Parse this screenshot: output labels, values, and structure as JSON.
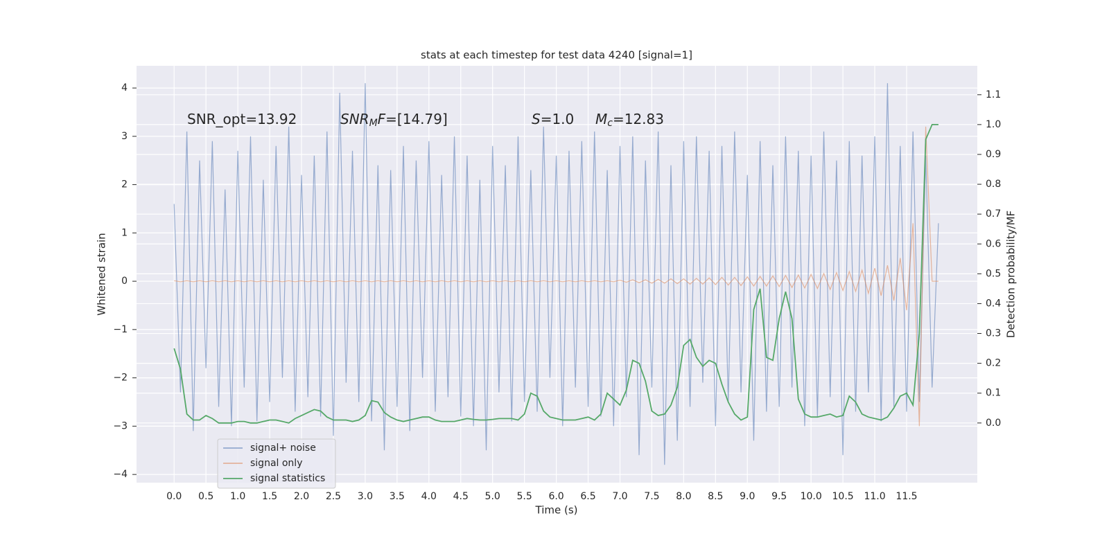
{
  "chart_data": {
    "type": "line",
    "title": "stats at each timestep for test data 4240 [signal=1]",
    "xlabel": "Time (s)",
    "ylabel": "Whitened strain",
    "y2label": "Detection probability/MF",
    "xlim": [
      -0.59,
      12.61
    ],
    "ylim": [
      -4.17,
      4.46
    ],
    "y2lim": [
      -0.2,
      1.197
    ],
    "xticks": [
      {
        "value": 0,
        "label": "0.0"
      },
      0.5,
      {
        "value": 1,
        "label": "1.0"
      },
      1.5,
      {
        "value": 2,
        "label": "2.0"
      },
      2.5,
      {
        "value": 3,
        "label": "3.0"
      },
      3.5,
      {
        "value": 4,
        "label": "4.0"
      },
      4.5,
      {
        "value": 5,
        "label": "5.0"
      },
      5.5,
      {
        "value": 6,
        "label": "6.0"
      },
      6.5,
      {
        "value": 7,
        "label": "7.0"
      },
      7.5,
      {
        "value": 8,
        "label": "8.0"
      },
      8.5,
      {
        "value": 9,
        "label": "9.0"
      },
      9.5,
      {
        "value": 10,
        "label": "10.0"
      },
      10.5,
      {
        "value": 11,
        "label": "11.0"
      },
      11.5
    ],
    "yticks": [
      {
        "value": -4,
        "label": "−4"
      },
      {
        "value": -3,
        "label": "−3"
      },
      {
        "value": -2,
        "label": "−2"
      },
      {
        "value": -1,
        "label": "−1"
      },
      0,
      1,
      2,
      3,
      4
    ],
    "y2ticks": [
      {
        "value": 0,
        "label": "0.0"
      },
      0.1,
      0.2,
      0.3,
      0.4,
      0.5,
      0.6,
      0.7,
      0.8,
      0.9,
      {
        "value": 1,
        "label": "1.0"
      },
      1.1
    ],
    "grid": true,
    "legend": "lower left",
    "annotations": [
      {
        "text": "SNR_opt=13.92"
      },
      {
        "math": "SNR",
        "sub": "M",
        "math_after": "F",
        "text": "=[14.79]"
      },
      {
        "math": "S",
        "text": "=1.0"
      },
      {
        "math": "M",
        "sub": "c",
        "text": "=12.83"
      }
    ],
    "x": [
      0,
      0.1,
      0.2,
      0.3,
      0.4,
      0.5,
      0.6,
      0.7,
      0.8,
      0.9,
      1.0,
      1.1,
      1.2,
      1.3,
      1.4,
      1.5,
      1.6,
      1.7,
      1.8,
      1.9,
      2.0,
      2.1,
      2.2,
      2.3,
      2.4,
      2.5,
      2.6,
      2.7,
      2.8,
      2.9,
      3.0,
      3.1,
      3.2,
      3.3,
      3.4,
      3.5,
      3.6,
      3.7,
      3.8,
      3.9,
      4.0,
      4.1,
      4.2,
      4.3,
      4.4,
      4.5,
      4.6,
      4.7,
      4.8,
      4.9,
      5.0,
      5.1,
      5.2,
      5.3,
      5.4,
      5.5,
      5.6,
      5.7,
      5.8,
      5.9,
      6.0,
      6.1,
      6.2,
      6.3,
      6.4,
      6.5,
      6.6,
      6.7,
      6.8,
      6.9,
      7.0,
      7.1,
      7.2,
      7.3,
      7.4,
      7.5,
      7.6,
      7.7,
      7.8,
      7.9,
      8.0,
      8.1,
      8.2,
      8.3,
      8.4,
      8.5,
      8.6,
      8.7,
      8.8,
      8.9,
      9.0,
      9.1,
      9.2,
      9.3,
      9.4,
      9.5,
      9.6,
      9.7,
      9.8,
      9.9,
      10.0,
      10.1,
      10.2,
      10.3,
      10.4,
      10.5,
      10.6,
      10.7,
      10.8,
      10.9,
      11.0,
      11.1,
      11.2,
      11.3,
      11.4,
      11.5,
      11.6,
      11.7,
      11.8,
      11.9,
      12.0
    ],
    "series": [
      {
        "name": "signal+ noise",
        "color": "#4c72b0",
        "values": [
          1.6,
          -2.3,
          3.1,
          -3.1,
          2.5,
          -1.8,
          2.9,
          -2.6,
          1.9,
          -3.0,
          2.7,
          -2.2,
          3.0,
          -2.9,
          2.1,
          -2.5,
          2.8,
          -2.0,
          3.2,
          -2.7,
          2.2,
          -2.4,
          2.6,
          -2.8,
          3.1,
          -3.2,
          3.9,
          -2.1,
          2.7,
          -2.5,
          4.1,
          -2.9,
          2.4,
          -3.5,
          2.3,
          -2.6,
          2.8,
          -3.1,
          2.5,
          -2.0,
          2.9,
          -2.7,
          2.2,
          -2.4,
          3.0,
          -2.8,
          2.6,
          -3.0,
          2.1,
          -3.5,
          2.8,
          -2.3,
          2.4,
          -2.9,
          3.0,
          -2.5,
          2.3,
          -2.7,
          3.2,
          -2.0,
          2.6,
          -3.0,
          2.7,
          -2.2,
          2.9,
          -2.6,
          3.1,
          -2.8,
          2.3,
          -3.0,
          2.8,
          -2.4,
          3.0,
          -3.6,
          2.5,
          -2.2,
          3.1,
          -3.8,
          2.4,
          -3.3,
          2.9,
          -2.6,
          3.0,
          -2.1,
          2.7,
          -3.0,
          2.8,
          -2.5,
          3.1,
          -2.3,
          2.2,
          -3.3,
          2.9,
          -2.7,
          2.4,
          -2.6,
          3.0,
          -2.2,
          2.7,
          -3.0,
          2.6,
          -2.8,
          3.1,
          -2.4,
          2.5,
          -3.6,
          2.9,
          -2.7,
          2.6,
          -2.3,
          3.0,
          -2.9,
          4.1,
          -2.6,
          2.8,
          -2.7,
          3.1,
          -2.5,
          2.6,
          -2.2,
          1.2
        ]
      },
      {
        "name": "signal only",
        "color": "#dd8452",
        "values": [
          0.01,
          -0.01,
          0.01,
          -0.01,
          0.01,
          -0.01,
          0.01,
          -0.01,
          0.01,
          -0.01,
          0.01,
          -0.01,
          0.01,
          -0.01,
          0.01,
          -0.01,
          0.01,
          -0.01,
          0.01,
          -0.01,
          0.01,
          -0.01,
          0.01,
          -0.01,
          0.01,
          -0.01,
          0.01,
          -0.01,
          0.01,
          -0.01,
          0.01,
          -0.01,
          0.01,
          -0.01,
          0.01,
          -0.01,
          0.01,
          -0.01,
          0.01,
          -0.01,
          0.01,
          -0.01,
          0.01,
          -0.01,
          0.01,
          -0.01,
          0.01,
          -0.01,
          0.01,
          -0.01,
          0.01,
          -0.01,
          0.01,
          -0.01,
          0.01,
          -0.01,
          0.01,
          -0.01,
          0.01,
          -0.01,
          0.01,
          -0.01,
          0.01,
          -0.01,
          0.01,
          -0.01,
          0.01,
          -0.01,
          0.01,
          -0.01,
          0.02,
          -0.02,
          0.03,
          -0.03,
          0.03,
          -0.04,
          0.04,
          -0.04,
          0.05,
          -0.05,
          0.05,
          -0.06,
          0.06,
          -0.06,
          0.07,
          -0.07,
          0.08,
          -0.08,
          0.08,
          -0.09,
          0.09,
          -0.1,
          0.1,
          -0.1,
          0.11,
          -0.11,
          0.12,
          -0.13,
          0.13,
          -0.14,
          0.14,
          -0.15,
          0.16,
          -0.17,
          0.18,
          -0.19,
          0.2,
          -0.21,
          0.23,
          -0.25,
          0.27,
          -0.3,
          0.33,
          -0.4,
          0.48,
          -0.6,
          1.2,
          -3.0,
          3.2,
          0.0,
          0.0
        ]
      },
      {
        "name": "signal statistics",
        "color": "#55a868",
        "axis": "y2",
        "values": [
          0.25,
          0.18,
          0.03,
          0.01,
          0.01,
          0.025,
          0.015,
          0.0,
          0.0,
          0.0,
          0.005,
          0.005,
          0.0,
          0.0,
          0.005,
          0.01,
          0.01,
          0.005,
          0.0,
          0.015,
          0.025,
          0.035,
          0.045,
          0.04,
          0.02,
          0.01,
          0.01,
          0.01,
          0.005,
          0.01,
          0.025,
          0.075,
          0.07,
          0.035,
          0.02,
          0.01,
          0.005,
          0.01,
          0.015,
          0.02,
          0.02,
          0.01,
          0.005,
          0.005,
          0.005,
          0.01,
          0.015,
          0.012,
          0.01,
          0.01,
          0.012,
          0.015,
          0.015,
          0.015,
          0.01,
          0.03,
          0.1,
          0.09,
          0.04,
          0.02,
          0.015,
          0.01,
          0.01,
          0.01,
          0.015,
          0.02,
          0.01,
          0.03,
          0.1,
          0.08,
          0.06,
          0.11,
          0.21,
          0.2,
          0.14,
          0.04,
          0.025,
          0.03,
          0.06,
          0.12,
          0.26,
          0.28,
          0.22,
          0.19,
          0.21,
          0.2,
          0.13,
          0.07,
          0.03,
          0.01,
          0.02,
          0.38,
          0.45,
          0.22,
          0.21,
          0.35,
          0.44,
          0.35,
          0.08,
          0.03,
          0.02,
          0.02,
          0.025,
          0.03,
          0.02,
          0.025,
          0.09,
          0.07,
          0.03,
          0.02,
          0.015,
          0.01,
          0.02,
          0.05,
          0.09,
          0.1,
          0.06,
          0.3,
          0.95,
          1.0,
          1.0
        ]
      }
    ]
  }
}
